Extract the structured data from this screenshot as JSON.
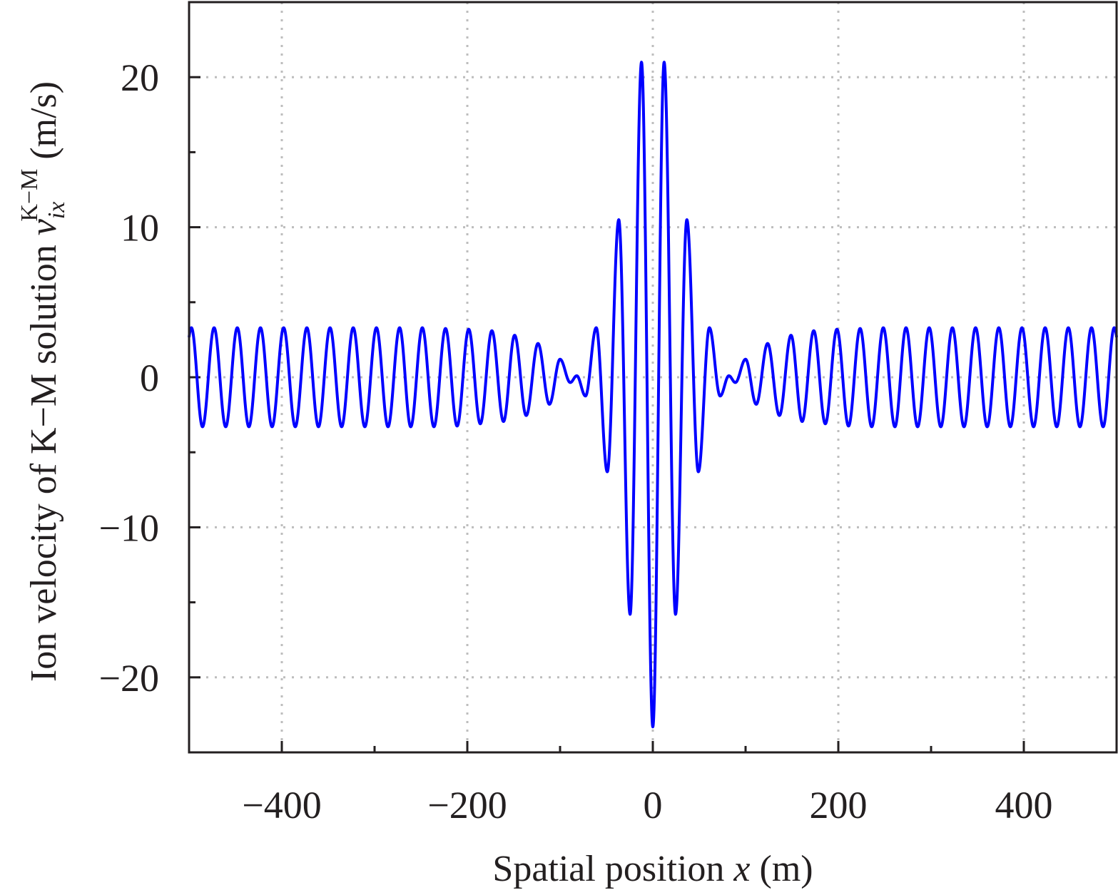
{
  "chart_data": {
    "type": "line",
    "title": "",
    "xlabel": {
      "prefix": "Spatial position ",
      "var": "x",
      "suffix": " (m)"
    },
    "ylabel": {
      "prefix": "Ion velocity of K−M solution ",
      "var": "v",
      "sub": "ix",
      "sup": "K−M",
      "suffix": " (m/s)"
    },
    "xlim": [
      -500,
      500
    ],
    "ylim": [
      -25,
      25
    ],
    "xticks": [
      -400,
      -200,
      0,
      200,
      400
    ],
    "xtick_labels": [
      "−400",
      "−200",
      "0",
      "200",
      "400"
    ],
    "xminor": [
      -500,
      -300,
      -100,
      100,
      300,
      500
    ],
    "yticks": [
      -20,
      -10,
      0,
      10,
      20
    ],
    "ytick_labels": [
      "−20",
      "−10",
      "0",
      "10",
      "20"
    ],
    "yminor": [
      -15,
      -5,
      5,
      15
    ],
    "grid": true,
    "legend": "none",
    "symmetric_about_x0": true,
    "series": [
      {
        "name": "v_ix K-M",
        "color": "#0000ff",
        "note": "extrema (local peaks/troughs) for x >= 0; curve mirrored for x < 0",
        "extrema_x": [
          0,
          12.2,
          24.5,
          36.7,
          49.1,
          61,
          72.6,
          82,
          89,
          100,
          111.5,
          123.8,
          136.5,
          149,
          161,
          173.5,
          186,
          198.5,
          211,
          223.5,
          236,
          248.5,
          261,
          273,
          285.5,
          298,
          310.5,
          323,
          335.5,
          348,
          360.5,
          373,
          385.5,
          398,
          410.5,
          423,
          435.5,
          448,
          460.5,
          473,
          485.5,
          497.5
        ],
        "extrema_y": [
          -23.3,
          21.0,
          -15.8,
          10.5,
          -6.3,
          3.3,
          -1.25,
          0.1,
          -0.35,
          1.2,
          -1.8,
          2.25,
          -2.55,
          2.8,
          -2.95,
          3.1,
          -3.1,
          3.2,
          -3.25,
          3.25,
          -3.3,
          3.3,
          -3.3,
          3.3,
          -3.3,
          3.3,
          -3.3,
          3.3,
          -3.3,
          3.3,
          -3.3,
          3.3,
          -3.3,
          3.3,
          -3.3,
          3.3,
          -3.3,
          3.3,
          -3.3,
          3.3,
          -3.3,
          3.3
        ]
      }
    ]
  }
}
